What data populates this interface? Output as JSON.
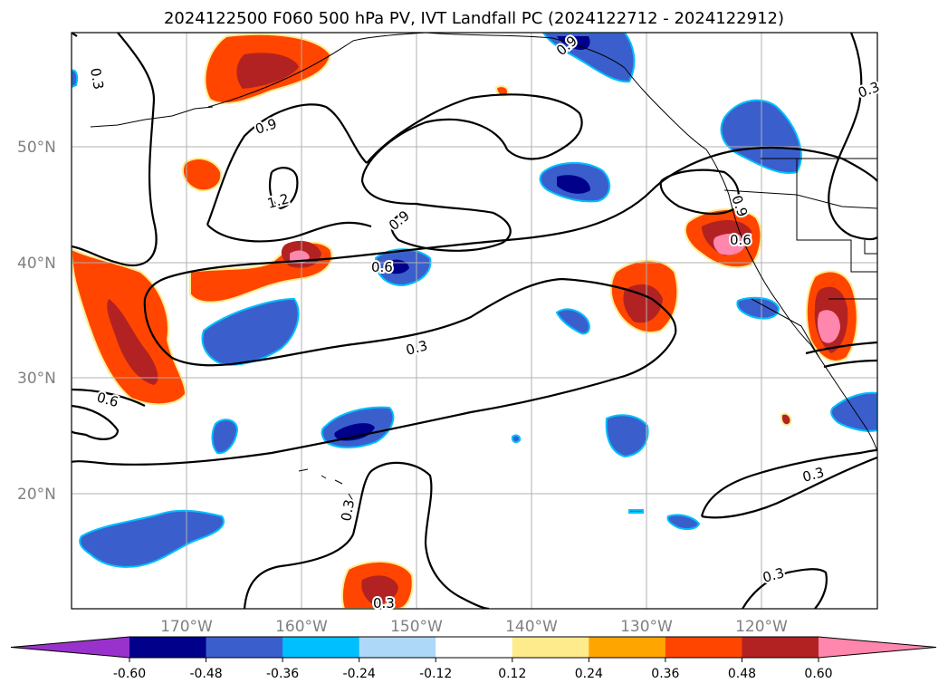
{
  "title": "2024122500 F060 500 hPa PV, IVT Landfall PC (2024122712 - 2024122912)",
  "lat_labels": [
    "50°N",
    "40°N",
    "30°N",
    "20°N"
  ],
  "lon_labels": [
    "170°W",
    "160°W",
    "150°W",
    "140°W",
    "130°W",
    "120°W"
  ],
  "contour_labels": [
    "0.3",
    "0.9",
    "1.2",
    "0.9",
    "0.6",
    "0.9",
    "0.6",
    "0.3",
    "0.6",
    "0.3",
    "0.3",
    "0.3",
    "0.3",
    "0.9",
    "0.3"
  ],
  "colorbar": {
    "ticks": [
      "-0.60",
      "-0.48",
      "-0.36",
      "-0.24",
      "-0.12",
      "0.12",
      "0.24",
      "0.36",
      "0.48",
      "0.60"
    ],
    "colors": [
      "#9932cc",
      "#00008b",
      "#3a5fcd",
      "#00bfff",
      "#add8f7",
      "#ffffff",
      "#fdeb8c",
      "#ffa500",
      "#ff4500",
      "#b22222",
      "#ff86ad"
    ]
  }
}
